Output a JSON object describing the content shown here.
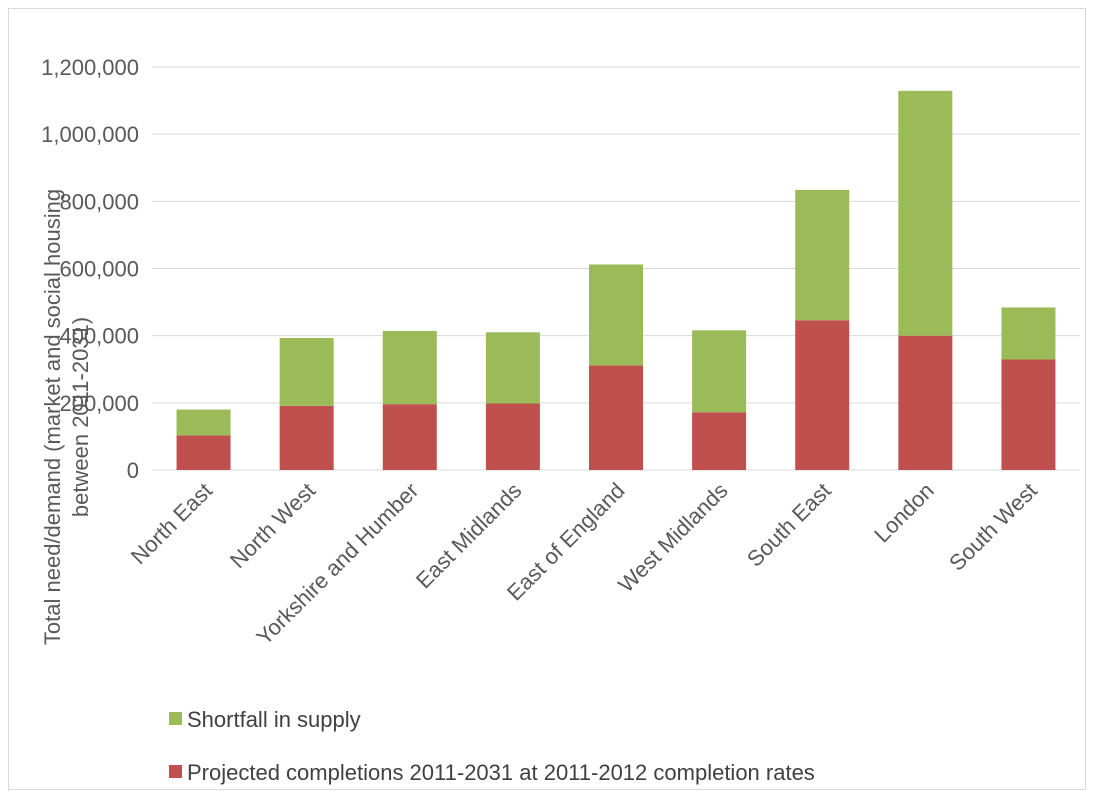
{
  "chart_data": {
    "type": "bar",
    "stacked": true,
    "categories": [
      "North East",
      "North West",
      "Yorkshire and Humber",
      "East Midlands",
      "East of England",
      "West Midlands",
      "South East",
      "London",
      "South West"
    ],
    "series": [
      {
        "name": "Projected completions 2011-2031 at 2011-2012 completion rates",
        "color": "#c0504d",
        "values": [
          103000,
          191000,
          196000,
          198000,
          311000,
          172000,
          446000,
          400000,
          329000
        ]
      },
      {
        "name": "Shortfall in supply",
        "color": "#9bbb59",
        "values": [
          77000,
          202000,
          218000,
          212000,
          301000,
          244000,
          388000,
          729000,
          155000
        ]
      }
    ],
    "ylabel_line1": "Total need/demand (market and social housing",
    "ylabel_line2": "between 2011-2031)",
    "ylim": [
      0,
      1200000
    ],
    "yticks": [
      "0",
      "200,000",
      "400,000",
      "600,000",
      "800,000",
      "1,000,000",
      "1,200,000"
    ],
    "ytick_values": [
      0,
      200000,
      400000,
      600000,
      800000,
      1000000,
      1200000
    ],
    "grid": true,
    "legend_position": "bottom",
    "legend": [
      {
        "label": "Shortfall in supply",
        "color": "#9bbb59"
      },
      {
        "label": "Projected completions 2011-2031 at 2011-2012 completion rates",
        "color": "#c0504d"
      }
    ]
  }
}
